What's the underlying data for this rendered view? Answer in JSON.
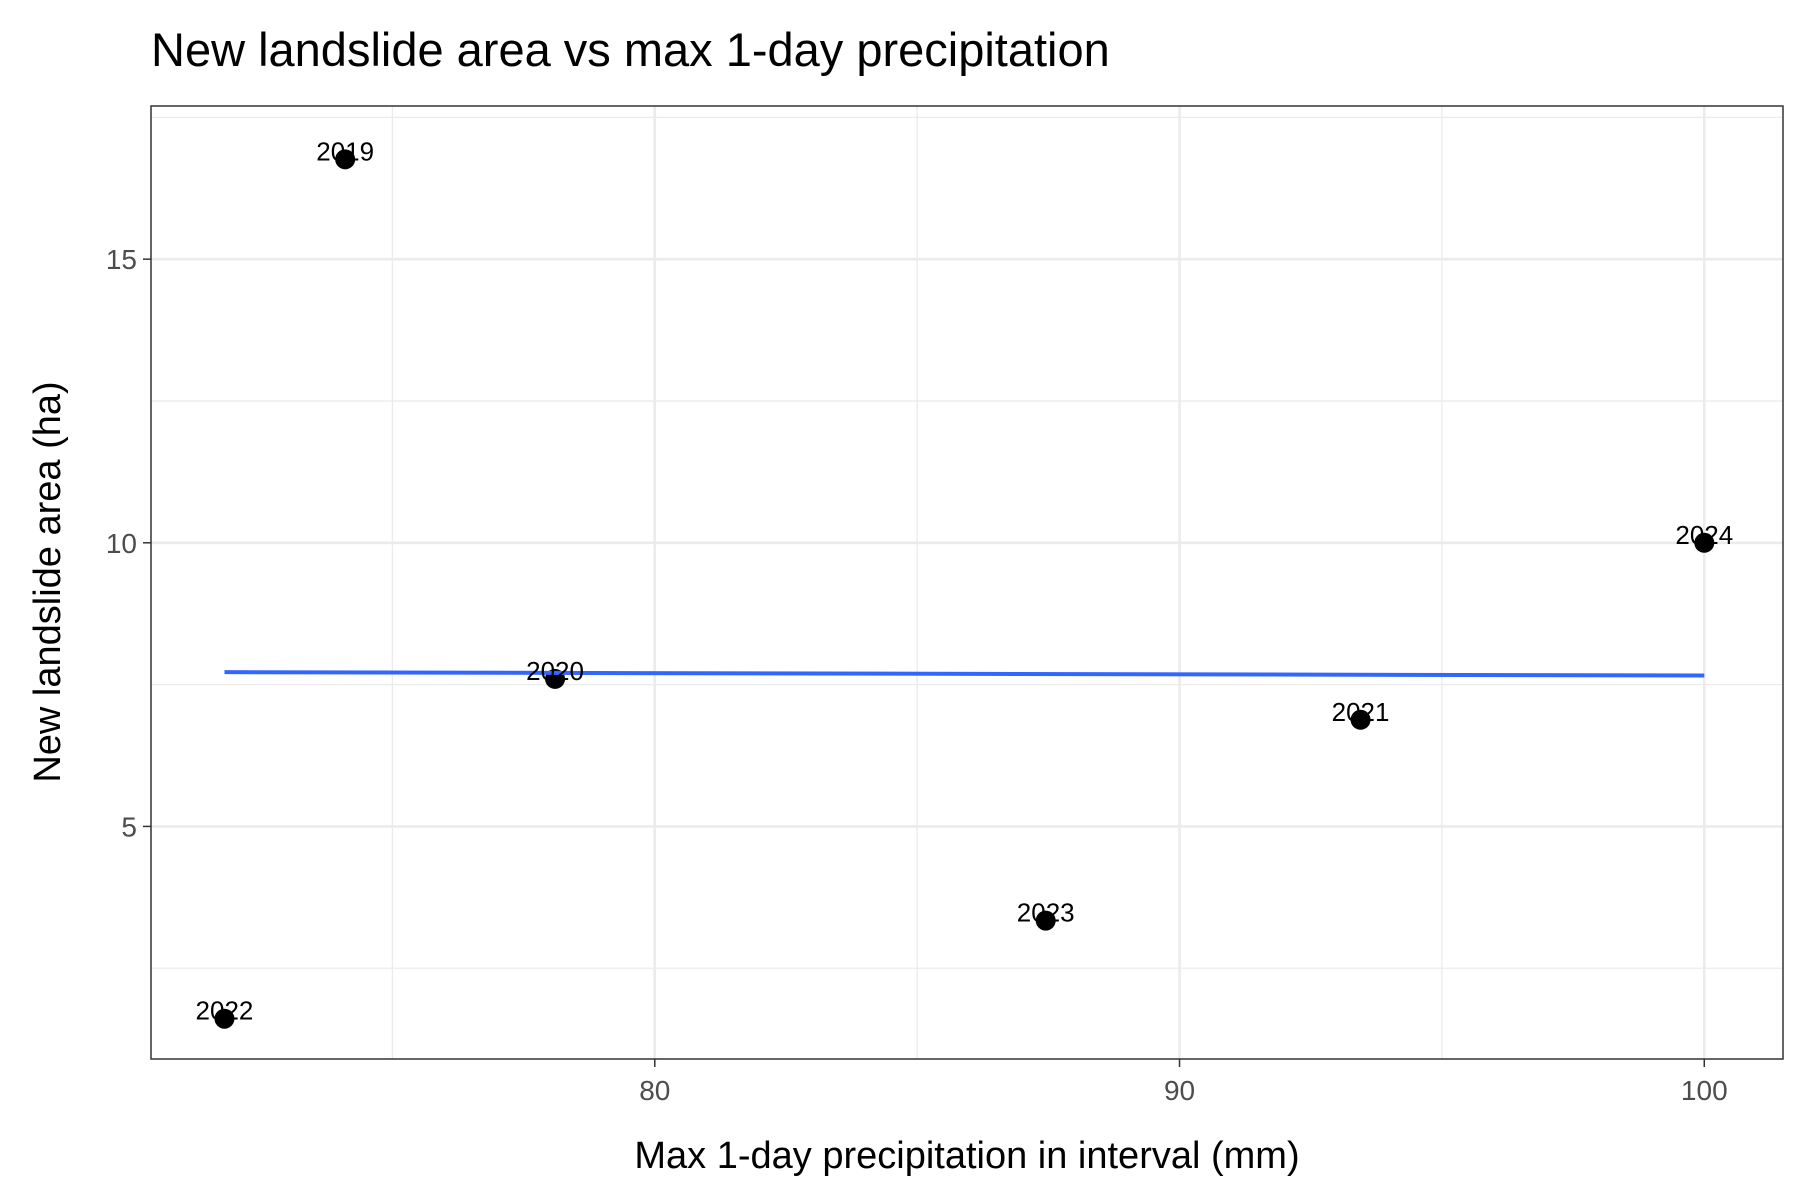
{
  "chart_data": {
    "type": "scatter",
    "title": "New landslide area vs max 1-day precipitation",
    "xlabel": "Max 1-day precipitation in interval (mm)",
    "ylabel": "New landslide area (ha)",
    "xlim": [
      70.4,
      101.5
    ],
    "ylim": [
      0.9,
      17.7
    ],
    "xticks": [
      80,
      90,
      100
    ],
    "yticks": [
      5,
      10,
      15
    ],
    "xminor": [
      75,
      85,
      95
    ],
    "yminor": [
      2.5,
      7.5,
      12.5,
      17.5
    ],
    "grid": true,
    "points": [
      {
        "label": "2019",
        "x": 74.1,
        "y": 16.76
      },
      {
        "label": "2020",
        "x": 78.1,
        "y": 7.6
      },
      {
        "label": "2021",
        "x": 93.45,
        "y": 6.88
      },
      {
        "label": "2022",
        "x": 71.8,
        "y": 1.61
      },
      {
        "label": "2023",
        "x": 87.45,
        "y": 3.34
      },
      {
        "label": "2024",
        "x": 100.0,
        "y": 10.0
      }
    ],
    "trend_line": {
      "x": [
        71.8,
        100.0
      ],
      "y": [
        7.72,
        7.66
      ],
      "color": "#3366ff"
    },
    "point_color": "#000000"
  }
}
